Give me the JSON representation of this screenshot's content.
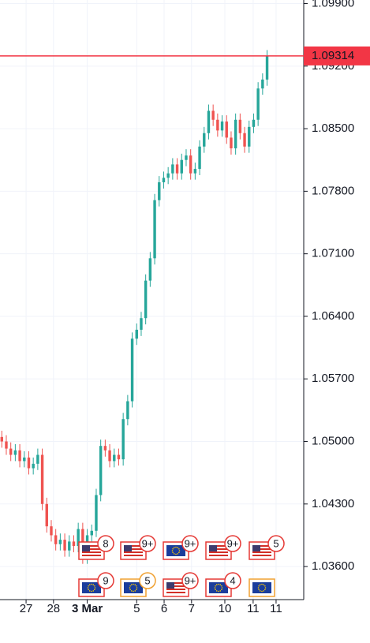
{
  "chart_data": {
    "type": "candlestick",
    "open": [
      1.0505,
      1.05,
      1.0492,
      1.0485,
      1.049,
      1.0478,
      1.0482,
      1.047,
      1.0475,
      1.0485,
      1.043,
      1.0405,
      1.0395,
      1.0385,
      1.039,
      1.0378,
      1.0388,
      1.0383,
      1.0402,
      1.037,
      1.0395,
      1.04,
      1.044,
      1.0495,
      1.049,
      1.0478,
      1.0485,
      1.048,
      1.0525,
      1.0545,
      1.0615,
      1.0625,
      1.0638,
      1.068,
      1.0705,
      1.077,
      1.079,
      1.0795,
      1.08,
      1.081,
      1.08,
      1.0815,
      1.082,
      1.08,
      1.0805,
      1.083,
      1.0845,
      1.087,
      1.086,
      1.0848,
      1.0858,
      1.084,
      1.0828,
      1.086,
      1.0845,
      1.083,
      1.0852,
      1.086,
      1.0895,
      1.0905
    ],
    "high": [
      1.0512,
      1.0507,
      1.0499,
      1.0497,
      1.0497,
      1.0489,
      1.0489,
      1.0482,
      1.0492,
      1.0492,
      1.0437,
      1.0412,
      1.0402,
      1.0397,
      1.0397,
      1.0395,
      1.0395,
      1.0409,
      1.0409,
      1.0402,
      1.0407,
      1.0447,
      1.0502,
      1.0502,
      1.0497,
      1.0492,
      1.0492,
      1.0532,
      1.0552,
      1.0622,
      1.0632,
      1.0645,
      1.0687,
      1.0712,
      1.0777,
      1.0797,
      1.0802,
      1.0807,
      1.0817,
      1.0817,
      1.0822,
      1.0827,
      1.0827,
      1.0812,
      1.0837,
      1.0852,
      1.0877,
      1.0877,
      1.0867,
      1.0865,
      1.0865,
      1.0847,
      1.0867,
      1.0867,
      1.0852,
      1.0859,
      1.0867,
      1.0902,
      1.0912,
      1.0938
    ],
    "low": [
      1.0493,
      1.0485,
      1.0478,
      1.0478,
      1.0471,
      1.0471,
      1.0463,
      1.0463,
      1.0468,
      1.0423,
      1.0398,
      1.0388,
      1.0378,
      1.0378,
      1.0371,
      1.0371,
      1.0376,
      1.0376,
      1.0363,
      1.0363,
      1.0388,
      1.0393,
      1.0433,
      1.0483,
      1.0471,
      1.0471,
      1.0473,
      1.0473,
      1.0518,
      1.0538,
      1.0608,
      1.0618,
      1.0631,
      1.0673,
      1.0698,
      1.0763,
      1.0783,
      1.0788,
      1.0793,
      1.0793,
      1.0793,
      1.0808,
      1.0793,
      1.0793,
      1.0798,
      1.0823,
      1.0838,
      1.0853,
      1.0841,
      1.0841,
      1.0833,
      1.0821,
      1.0821,
      1.0838,
      1.0823,
      1.0823,
      1.0845,
      1.0853,
      1.0888,
      1.0898
    ],
    "close": [
      1.05,
      1.0492,
      1.0485,
      1.049,
      1.0478,
      1.0482,
      1.047,
      1.0475,
      1.0485,
      1.043,
      1.0405,
      1.0395,
      1.0385,
      1.039,
      1.0378,
      1.0388,
      1.0383,
      1.0402,
      1.037,
      1.0395,
      1.04,
      1.044,
      1.0495,
      1.049,
      1.0478,
      1.0485,
      1.048,
      1.0525,
      1.0545,
      1.0615,
      1.0625,
      1.0638,
      1.068,
      1.0705,
      1.077,
      1.079,
      1.0795,
      1.08,
      1.081,
      1.08,
      1.0815,
      1.082,
      1.08,
      1.0805,
      1.083,
      1.0845,
      1.087,
      1.086,
      1.0848,
      1.0858,
      1.084,
      1.0828,
      1.086,
      1.0845,
      1.083,
      1.0852,
      1.086,
      1.0895,
      1.0905,
      1.0931
    ],
    "up_color": "#26a69a",
    "down_color": "#ef5350",
    "xlim": [
      -0.4,
      67.15
    ],
    "xticks": [
      {
        "value": 5.4,
        "label": "27"
      },
      {
        "value": 11.5,
        "label": "28"
      },
      {
        "value": 19,
        "label": "3 Mar"
      },
      {
        "value": 30,
        "label": "5"
      },
      {
        "value": 36.1,
        "label": "6"
      },
      {
        "value": 42.2,
        "label": "7"
      },
      {
        "value": 49.6,
        "label": "10"
      },
      {
        "value": 55.9,
        "label": "11"
      },
      {
        "value": 61,
        "label": "11"
      }
    ],
    "ylim": [
      1.0323,
      1.0994
    ],
    "yticks": [
      {
        "value": 1.099,
        "label": "1.09900"
      },
      {
        "value": 1.092,
        "label": "1.09200"
      },
      {
        "value": 1.085,
        "label": "1.08500"
      },
      {
        "value": 1.078,
        "label": "1.07800"
      },
      {
        "value": 1.071,
        "label": "1.07100"
      },
      {
        "value": 1.064,
        "label": "1.06400"
      },
      {
        "value": 1.057,
        "label": "1.05700"
      },
      {
        "value": 1.05,
        "label": "1.05000"
      },
      {
        "value": 1.043,
        "label": "1.04300"
      },
      {
        "value": 1.036,
        "label": "1.03600"
      }
    ],
    "grid": true,
    "current_price": 1.09314,
    "current_price_color": "#f23645",
    "events": [
      [
        "8",
        "9+",
        "9+",
        "9+",
        "5"
      ],
      [
        "9",
        "5",
        "9+",
        "4"
      ]
    ]
  }
}
